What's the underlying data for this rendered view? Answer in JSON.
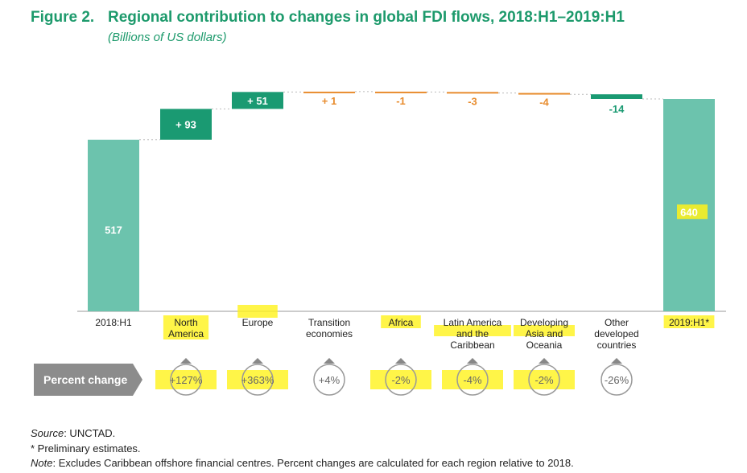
{
  "header": {
    "figure_label": "Figure 2.",
    "title": "Regional contribution to changes in global FDI flows, 2018:H1–2019:H1",
    "subtitle": "(Billions of US dollars)"
  },
  "chart_data": {
    "type": "waterfall",
    "categories": [
      "2018:H1",
      "North America",
      "Europe",
      "Transition economies",
      "Africa",
      "Latin America and the Caribbean",
      "Developing Asia and Oceania",
      "Other developed countries",
      "2019:H1*"
    ],
    "category_lines": [
      [
        "2018:H1"
      ],
      [
        "North",
        "America"
      ],
      [
        "Europe"
      ],
      [
        "Transition",
        "economies"
      ],
      [
        "Africa"
      ],
      [
        "Latin America",
        "and the",
        "Caribbean"
      ],
      [
        "Developing",
        "Asia and",
        "Oceania"
      ],
      [
        "Other",
        "developed",
        "countries"
      ],
      [
        "2019:H1*"
      ]
    ],
    "values": [
      517,
      93,
      51,
      1,
      -1,
      -3,
      -4,
      -14,
      640
    ],
    "kinds": [
      "total",
      "increase",
      "increase",
      "increase",
      "decrease",
      "decrease",
      "decrease",
      "decrease",
      "total"
    ],
    "data_labels": [
      "517",
      "+ 93",
      "+ 51",
      "+ 1",
      "-1",
      "-3",
      "-4",
      "-14",
      "640"
    ],
    "percent_label": "Percent change",
    "percent_changes": [
      "+127%",
      "+363%",
      "+4%",
      "-2%",
      "-4%",
      "-2%",
      "-26%"
    ],
    "colors": {
      "total": "#6cc3ad",
      "increase": "#1a9a72",
      "decrease_small": "#e88c2e",
      "decrease_large": "#1a9a72",
      "title": "#1d9a6c",
      "label_light": "#ffffff",
      "label_orange": "#e88c2e",
      "highlight": "#fff21a",
      "badge_bg": "#8c8c8c"
    }
  },
  "footer": {
    "source_label": "Source",
    "source_text": ": UNCTAD.",
    "prelim": "* Preliminary estimates.",
    "note_label": "Note",
    "note_text": ": Excludes Caribbean offshore financial centres. Percent changes are calculated for each region relative to 2018."
  }
}
